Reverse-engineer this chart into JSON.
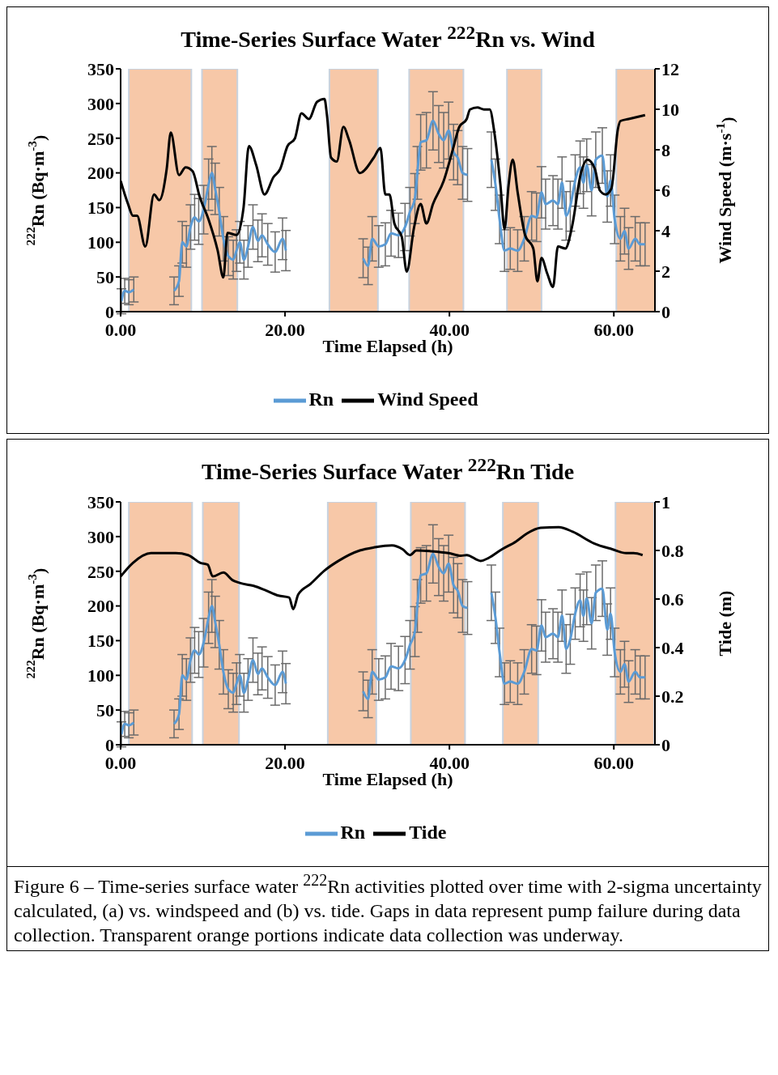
{
  "chart_data": [
    {
      "type": "line",
      "title": "Time-Series Surface Water $^{222}$Rn vs. Wind",
      "xlabel": "Time Elapsed (h)",
      "ylabel": "$^{222}$Rn (Bq·m$^{-3}$)",
      "y2label": "Wind Speed (m·s$^{-1}$)",
      "xlim": [
        0,
        65
      ],
      "xticks": [
        {
          "value": 0,
          "label": "0.00"
        },
        {
          "value": 20,
          "label": "20.00"
        },
        {
          "value": 40,
          "label": "40.00"
        },
        {
          "value": 60,
          "label": "60.00"
        }
      ],
      "ylim": [
        0,
        350
      ],
      "yticks": [
        0,
        50,
        100,
        150,
        200,
        250,
        300,
        350
      ],
      "y2lim": [
        0,
        12
      ],
      "y2ticks": [
        0,
        2,
        4,
        6,
        8,
        10,
        12
      ],
      "legend": "bottom",
      "marker": "none",
      "bands": [
        {
          "axis": "x",
          "from": 1.0,
          "to": 8.6,
          "color": "#f4b183"
        },
        {
          "axis": "x",
          "from": 9.9,
          "to": 14.2,
          "color": "#f4b183"
        },
        {
          "axis": "x",
          "from": 25.4,
          "to": 31.3,
          "color": "#f4b183"
        },
        {
          "axis": "x",
          "from": 35.1,
          "to": 41.7,
          "color": "#f4b183"
        },
        {
          "axis": "x",
          "from": 47.0,
          "to": 51.2,
          "color": "#f4b183"
        },
        {
          "axis": "x",
          "from": 60.3,
          "to": 65,
          "color": "#f4b183"
        }
      ],
      "series": [
        {
          "name": "Rn",
          "color": "#5b9bd5",
          "x": [
            0.1,
            0.5,
            1.0,
            1.6,
            3.5,
            6.5,
            7.1,
            7.5,
            8.0,
            8.5,
            9.0,
            9.5,
            10.1,
            10.7,
            11.1,
            11.5,
            12.0,
            12.5,
            13.1,
            13.7,
            14.1,
            14.5,
            15.0,
            15.5,
            16.1,
            16.7,
            17.2,
            17.9,
            18.8,
            19.7,
            20.1,
            25,
            29.5,
            30.1,
            30.6,
            31.4,
            32.2,
            32.9,
            33.8,
            34.6,
            35.2,
            35.8,
            36.1,
            36.5,
            37.2,
            38.0,
            38.7,
            39.3,
            39.9,
            40.5,
            41.0,
            41.6,
            42.2,
            43.5,
            45.1,
            45.6,
            46.1,
            46.7,
            47.4,
            48.3,
            49.1,
            50.0,
            50.6,
            51.2,
            51.7,
            52.6,
            53.2,
            53.7,
            54.2,
            54.7,
            55.3,
            55.9,
            56.3,
            56.7,
            57.3,
            57.8,
            58.6,
            59.2,
            59.6,
            60.1,
            60.8,
            61.3,
            61.8,
            62.6,
            63.2,
            63.8
          ],
          "values": [
            15,
            30,
            28,
            32,
            null,
            30,
            44,
            100,
            94,
            122,
            136,
            130,
            147,
            183,
            200,
            177,
            144,
            105,
            80,
            75,
            88,
            100,
            75,
            94,
            122,
            102,
            110,
            97,
            86,
            105,
            88,
            null,
            77,
            66,
            105,
            94,
            97,
            113,
            110,
            122,
            144,
            163,
            200,
            244,
            247,
            275,
            256,
            247,
            261,
            230,
            222,
            200,
            197,
            null,
            219,
            183,
            133,
            88,
            91,
            88,
            105,
            138,
            136,
            172,
            155,
            160,
            155,
            186,
            138,
            152,
            189,
            208,
            186,
            211,
            175,
            219,
            225,
            166,
            189,
            133,
            105,
            116,
            91,
            105,
            97,
            97
          ],
          "errors": [
            18,
            18,
            18,
            18,
            null,
            20,
            22,
            30,
            30,
            32,
            33,
            33,
            35,
            37,
            38,
            37,
            35,
            32,
            28,
            28,
            30,
            30,
            28,
            30,
            32,
            30,
            31,
            30,
            29,
            30,
            29,
            null,
            28,
            27,
            32,
            30,
            31,
            33,
            32,
            34,
            35,
            36,
            38,
            40,
            40,
            42,
            41,
            40,
            41,
            40,
            39,
            38,
            38,
            null,
            40,
            37,
            35,
            30,
            30,
            30,
            32,
            35,
            35,
            37,
            36,
            36,
            36,
            37,
            35,
            36,
            37,
            38,
            37,
            38,
            37,
            40,
            40,
            37,
            37,
            35,
            32,
            33,
            30,
            32,
            31,
            31
          ]
        },
        {
          "name": "Wind Speed",
          "color": "#000000",
          "axis": "y2",
          "x": [
            0,
            0.9,
            1.5,
            2.0,
            3.0,
            4.06,
            4.7,
            5.6,
            6.1,
            7.1,
            7.9,
            8.76,
            9.6,
            10.7,
            11.8,
            12.5,
            13.0,
            14.1,
            14.95,
            15.6,
            16.5,
            17.5,
            18.6,
            19.4,
            20.3,
            21.2,
            22.0,
            22.9,
            23.9,
            24.8,
            25.1,
            25.6,
            26.3,
            27.1,
            27.8,
            29.1,
            30.8,
            31.6,
            32.2,
            32.7,
            33.3,
            34.2,
            34.8,
            35.7,
            36.5,
            37.2,
            38.0,
            39.3,
            40.4,
            41.2,
            42.1,
            42.5,
            43.4,
            44.2,
            44.9,
            45.5,
            46.2,
            46.7,
            47.2,
            47.7,
            48.3,
            49.2,
            50.2,
            50.7,
            51.2,
            51.9,
            52.6,
            53.2,
            54.1,
            54.9,
            56.0,
            56.8,
            57.7,
            58.3,
            59.0,
            59.7,
            60.5,
            60.8,
            61.8,
            63.8
          ],
          "values": [
            6.46,
            5.32,
            4.74,
            4.74,
            3.22,
            5.79,
            5.51,
            7.04,
            8.85,
            6.75,
            7.13,
            6.94,
            5.7,
            4.55,
            3.03,
            1.69,
            3.89,
            3.79,
            5.13,
            8.18,
            7.23,
            5.79,
            6.65,
            7.04,
            8.18,
            8.56,
            9.8,
            9.52,
            10.37,
            10.51,
            9.71,
            7.61,
            7.42,
            9.13,
            8.47,
            6.85,
            7.61,
            8.09,
            5.79,
            5.79,
            4.36,
            3.7,
            1.98,
            4.17,
            5.32,
            4.36,
            5.32,
            6.46,
            7.99,
            9.13,
            9.52,
            9.99,
            10.09,
            9.99,
            9.99,
            8.75,
            6.27,
            4.08,
            6.27,
            7.51,
            5.89,
            3.79,
            3.12,
            1.5,
            2.65,
            1.88,
            1.22,
            3.22,
            3.12,
            4.17,
            6.85,
            7.51,
            7.04,
            5.99,
            5.79,
            6.08,
            9.04,
            9.42,
            9.52,
            9.71
          ]
        }
      ]
    },
    {
      "type": "line",
      "title": "Time-Series Surface Water $^{222}$Rn Tide",
      "xlabel": "Time Elapsed (h)",
      "ylabel": "$^{222}$Rn (Bq·m$^{-3}$)",
      "y2label": "Tide (m)",
      "xlim": [
        0,
        65
      ],
      "xticks": [
        {
          "value": 0,
          "label": "0.00"
        },
        {
          "value": 20,
          "label": "20.00"
        },
        {
          "value": 40,
          "label": "40.00"
        },
        {
          "value": 60,
          "label": "60.00"
        }
      ],
      "ylim": [
        0,
        350
      ],
      "yticks": [
        0,
        50,
        100,
        150,
        200,
        250,
        300,
        350
      ],
      "y2lim": [
        0,
        1
      ],
      "y2ticks": [
        0,
        0.2,
        0.4,
        0.6,
        0.8,
        1
      ],
      "legend": "bottom",
      "marker": "none",
      "bands": [
        {
          "axis": "x",
          "from": 1.0,
          "to": 8.7,
          "color": "#f4b183"
        },
        {
          "axis": "x",
          "from": 10.0,
          "to": 14.4,
          "color": "#f4b183"
        },
        {
          "axis": "x",
          "from": 25.2,
          "to": 31.1,
          "color": "#f4b183"
        },
        {
          "axis": "x",
          "from": 35.3,
          "to": 41.9,
          "color": "#f4b183"
        },
        {
          "axis": "x",
          "from": 46.5,
          "to": 50.8,
          "color": "#f4b183"
        },
        {
          "axis": "x",
          "from": 60.2,
          "to": 64.9,
          "color": "#f4b183"
        }
      ],
      "annotations": [
        "Figure 6 – Time-series surface water $^{222}$Rn activities plotted over time with 2-sigma uncertainty calculated, (a) vs. windspeed and (b) vs. tide. Gaps in data represent pump failure during data collection. Transparent orange portions indicate data collection was underway."
      ],
      "series": [
        {
          "name": "Rn",
          "color": "#5b9bd5",
          "x": [
            0.1,
            0.5,
            1.0,
            1.6,
            3.5,
            6.5,
            7.1,
            7.5,
            8.0,
            8.5,
            9.0,
            9.5,
            10.1,
            10.7,
            11.1,
            11.5,
            12.0,
            12.5,
            13.1,
            13.7,
            14.1,
            14.5,
            15.0,
            15.5,
            16.1,
            16.7,
            17.2,
            17.9,
            18.8,
            19.7,
            20.1,
            25,
            29.5,
            30.1,
            30.6,
            31.4,
            32.2,
            32.9,
            33.8,
            34.6,
            35.2,
            35.8,
            36.1,
            36.5,
            37.2,
            38.0,
            38.7,
            39.3,
            39.9,
            40.5,
            41.0,
            41.6,
            42.2,
            43.5,
            45.1,
            45.6,
            46.1,
            46.7,
            47.4,
            48.3,
            49.1,
            50.0,
            50.6,
            51.2,
            51.7,
            52.6,
            53.2,
            53.7,
            54.2,
            54.7,
            55.3,
            55.9,
            56.3,
            56.7,
            57.3,
            57.8,
            58.6,
            59.2,
            59.6,
            60.1,
            60.8,
            61.3,
            61.8,
            62.6,
            63.2,
            63.8
          ],
          "values": [
            15,
            30,
            28,
            32,
            null,
            30,
            44,
            100,
            94,
            122,
            136,
            130,
            147,
            183,
            200,
            177,
            144,
            105,
            80,
            75,
            88,
            100,
            75,
            94,
            122,
            102,
            110,
            97,
            86,
            105,
            88,
            null,
            77,
            66,
            105,
            94,
            97,
            113,
            110,
            122,
            144,
            163,
            200,
            244,
            247,
            275,
            256,
            247,
            261,
            230,
            222,
            200,
            197,
            null,
            219,
            183,
            133,
            88,
            91,
            88,
            105,
            138,
            136,
            172,
            155,
            160,
            155,
            186,
            138,
            152,
            189,
            208,
            186,
            211,
            175,
            219,
            225,
            166,
            189,
            133,
            105,
            116,
            91,
            105,
            97,
            97
          ],
          "errors": [
            18,
            18,
            18,
            18,
            null,
            20,
            22,
            30,
            30,
            32,
            33,
            33,
            35,
            37,
            38,
            37,
            35,
            32,
            28,
            28,
            30,
            30,
            28,
            30,
            32,
            30,
            31,
            30,
            29,
            30,
            29,
            null,
            28,
            27,
            32,
            30,
            31,
            33,
            32,
            34,
            35,
            36,
            38,
            40,
            40,
            42,
            41,
            40,
            41,
            40,
            39,
            38,
            38,
            null,
            40,
            37,
            35,
            30,
            30,
            30,
            32,
            35,
            35,
            37,
            36,
            36,
            36,
            37,
            35,
            36,
            37,
            38,
            37,
            38,
            37,
            40,
            40,
            37,
            37,
            35,
            32,
            33,
            30,
            32,
            31,
            31
          ]
        },
        {
          "name": "Tide",
          "color": "#000000",
          "axis": "y2",
          "x": [
            0,
            1.5,
            3.7,
            6.7,
            8.2,
            9.7,
            10.6,
            11.2,
            12.5,
            13.6,
            14.5,
            16.2,
            17.5,
            19.2,
            20.5,
            21.0,
            21.6,
            23.1,
            24.8,
            26.5,
            29.1,
            30.9,
            33.0,
            34.3,
            35.2,
            36.0,
            37.7,
            39.9,
            41.4,
            42.1,
            43.8,
            44.7,
            46.4,
            48.1,
            49.4,
            51.1,
            53.3,
            55.0,
            57.6,
            59.8,
            61.5,
            62.4,
            63.5
          ],
          "values": [
            0.693,
            0.749,
            0.789,
            0.789,
            0.781,
            0.749,
            0.741,
            0.693,
            0.709,
            0.678,
            0.666,
            0.654,
            0.638,
            0.614,
            0.606,
            0.558,
            0.618,
            0.662,
            0.717,
            0.757,
            0.8,
            0.813,
            0.821,
            0.805,
            0.781,
            0.8,
            0.797,
            0.789,
            0.778,
            0.781,
            0.757,
            0.768,
            0.805,
            0.837,
            0.869,
            0.893,
            0.896,
            0.877,
            0.829,
            0.805,
            0.789,
            0.789,
            0.781
          ]
        }
      ]
    }
  ]
}
